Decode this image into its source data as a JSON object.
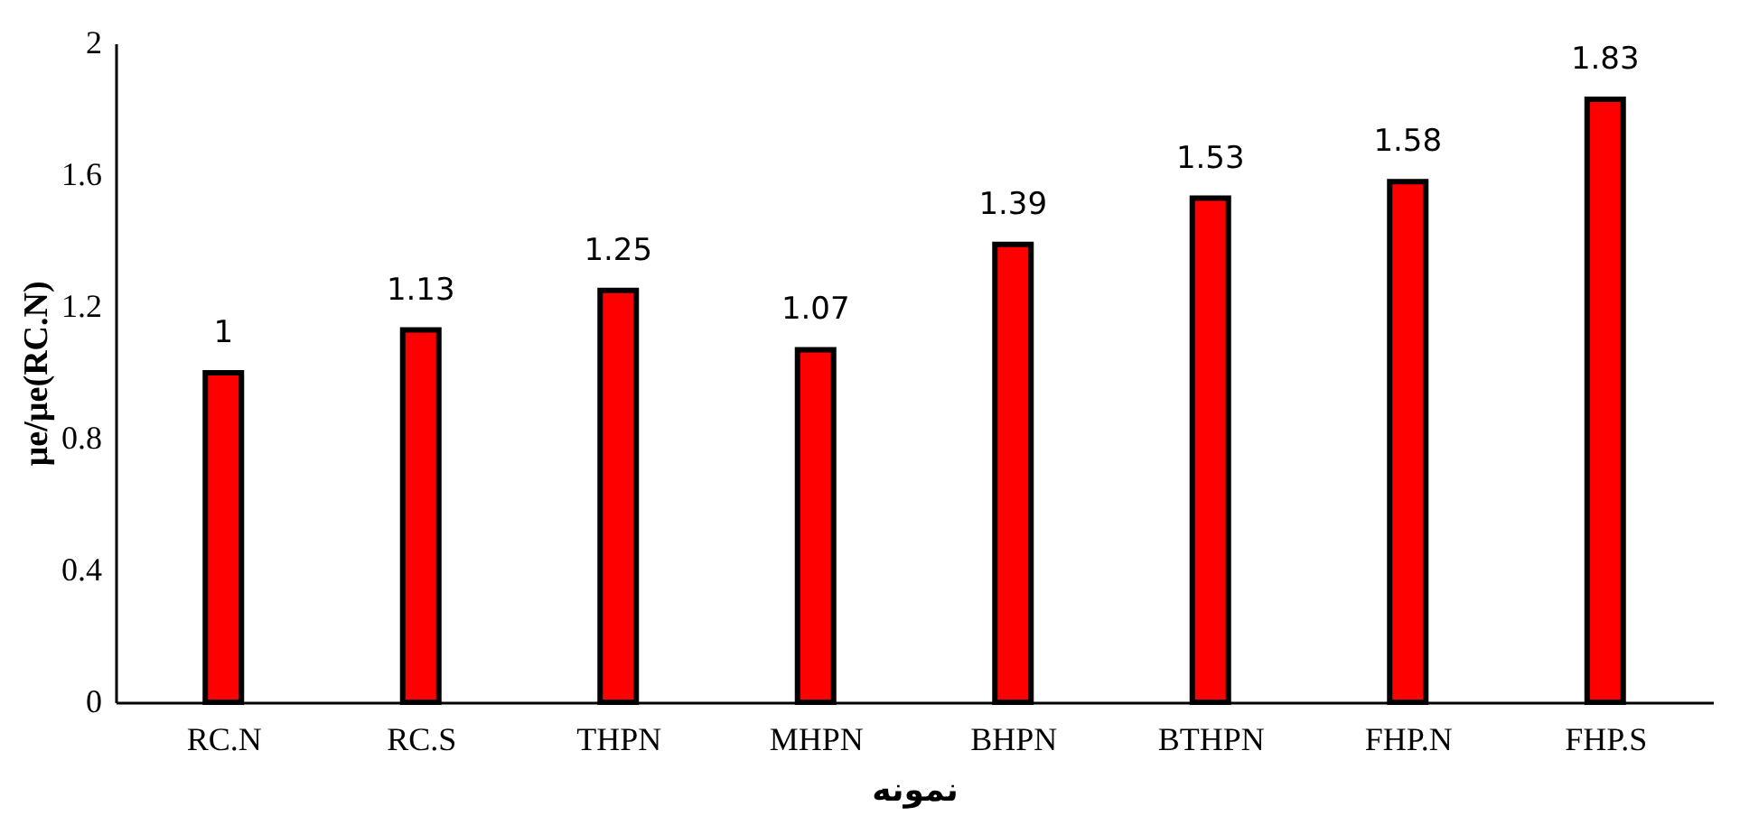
{
  "chart_data": {
    "type": "bar",
    "xlabel": "نمونه",
    "ylabel": "µe/µe(RC.N)",
    "categories": [
      "RC.N",
      "RC.S",
      "THPN",
      "MHPN",
      "BHPN",
      "BTHPN",
      "FHP.N",
      "FHP.S"
    ],
    "values": [
      1,
      1.13,
      1.25,
      1.07,
      1.39,
      1.53,
      1.58,
      1.83
    ],
    "color": "#ff0000",
    "ylim": [
      0,
      2
    ],
    "yticks": [
      0,
      0.4,
      0.8,
      1.2,
      1.6,
      2
    ],
    "grid": false,
    "data_labels": true
  }
}
